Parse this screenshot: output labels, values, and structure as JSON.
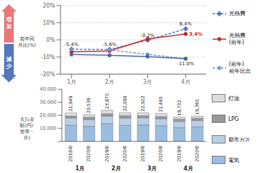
{
  "chart_data": [
    {
      "type": "line",
      "y_label": "前年同\n月比(%)",
      "categories": [
        "1月",
        "2月",
        "3月",
        "4月"
      ],
      "series": [
        {
          "name": "光熱費",
          "color": "#5577bb",
          "line_style": "dashed",
          "marker": "diamond",
          "values": [
            -5.4,
            -5.6,
            -0.2,
            6.4
          ]
        },
        {
          "name": "光熱費\n(前年)",
          "color": "#cc2222",
          "line_style": "solid",
          "marker": "circle",
          "values": [
            -7.0,
            -6.5,
            0.5,
            3.4
          ]
        },
        {
          "name": "(前年)\n前年比出",
          "color": "#7799cc",
          "line_style": "dashed",
          "marker": "circle",
          "values": [
            -5.4,
            -5.8,
            -8.5,
            -11.0
          ]
        },
        {
          "color": "#4466aa",
          "line_style": "solid",
          "marker": "circle",
          "values": [
            -8.5,
            -9.0,
            -9.8,
            -11.0
          ]
        }
      ],
      "ylim": [
        -20,
        20
      ],
      "yticks": [
        {
          "value": -20,
          "label": "-20%"
        },
        {
          "value": -10,
          "label": "-10%"
        },
        {
          "value": 0,
          "label": "0%"
        },
        {
          "value": 10,
          "label": "10%"
        },
        {
          "value": 20,
          "label": "20%"
        }
      ],
      "grid": true,
      "legend": "right",
      "annotations": [
        {
          "text": "-5.4%",
          "x": "1月",
          "y": -5.4
        },
        {
          "text": "-5.6%",
          "x": "2月",
          "y": -5.6
        },
        {
          "text": "6.4%",
          "x": "4月",
          "y": 6.4
        },
        {
          "text": "-0.2%",
          "x": "3月",
          "y": -0.2
        },
        {
          "text": "3.4%",
          "x": "4月",
          "y": 3.4,
          "color": "#cc2222"
        },
        {
          "text": "-11.0%",
          "x": "4月",
          "y": -11.0
        },
        {
          "text": "増\n加",
          "color": "#e87878"
        },
        {
          "text": "減\n少",
          "color": "#5577bb"
        }
      ]
    },
    {
      "type": "bar",
      "stacked": true,
      "y_label": "支払金\n額(円/\n世帯・\n月)",
      "categories": [
        "2016年",
        "2020年",
        "2019年",
        "2020年",
        "2019年",
        "2020年",
        "2019年",
        "2020年"
      ],
      "category_groups": [
        "1月",
        "1月",
        "2月",
        "2月",
        "3月",
        "3月",
        "4月",
        "4月"
      ],
      "series": [
        {
          "name": "電気",
          "color": "#9bbde0",
          "values": [
            12449,
            11536,
            13675,
            12390,
            12622,
            12065,
            10632,
            11165
          ]
        },
        {
          "name": "都市ガス",
          "color": "#b8cfe8",
          "values": [
            5500,
            5200,
            5700,
            5500,
            5400,
            5200,
            4700,
            4800
          ]
        },
        {
          "name": "LPG",
          "color": "#999999",
          "values": [
            1551,
            1800,
            1825,
            1900,
            1700,
            1800,
            1800,
            1800
          ]
        },
        {
          "name": "灯油",
          "color": "#dddddd",
          "values": [
            2449,
            2000,
            2675,
            2300,
            2300,
            2400,
            1600,
            1600
          ]
        }
      ],
      "totals": {
        "values": [
          21949,
          20536,
          23875,
          22090,
          22022,
          21465,
          18732,
          19365
        ],
        "value_labels": [
          "21,949",
          "20,536",
          "23,875",
          "22,090",
          "22,022",
          "21,465",
          "18,732",
          "19,365"
        ]
      },
      "ylim": [
        0,
        40000
      ],
      "yticks": [
        0,
        {
          "value": 10000,
          "label": "10,000"
        },
        {
          "value": 20000,
          "label": "20,000"
        },
        {
          "value": 30000,
          "label": "30,000"
        },
        {
          "value": 40000,
          "label": "40,000"
        }
      ],
      "grid": false,
      "legend": "right"
    }
  ]
}
